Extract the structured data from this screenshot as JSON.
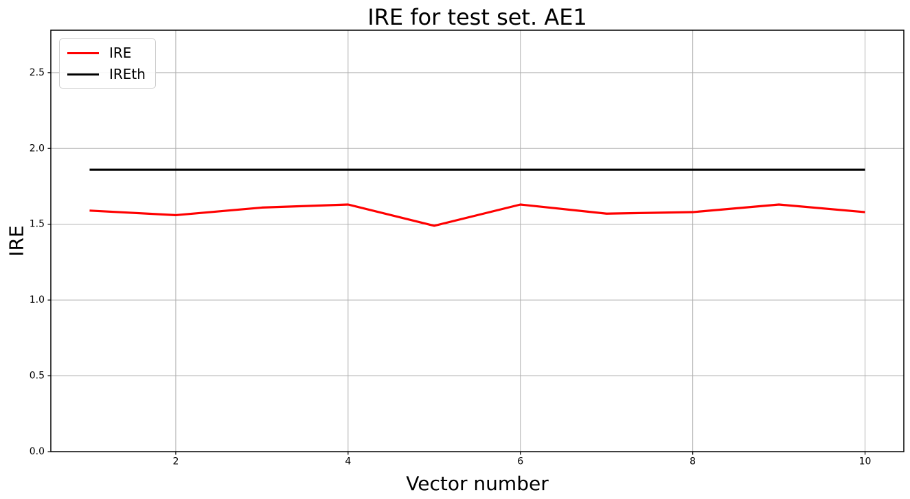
{
  "chart_data": {
    "type": "line",
    "title": "IRE for test set. AE1",
    "xlabel": "Vector number",
    "ylabel": "IRE",
    "x": [
      1,
      2,
      3,
      4,
      5,
      6,
      7,
      8,
      9,
      10
    ],
    "series": [
      {
        "name": "IRE",
        "color": "#ff0000",
        "values": [
          1.59,
          1.56,
          1.61,
          1.63,
          1.49,
          1.63,
          1.57,
          1.58,
          1.63,
          1.58
        ]
      },
      {
        "name": "IREth",
        "color": "#000000",
        "values": [
          1.86,
          1.86,
          1.86,
          1.86,
          1.86,
          1.86,
          1.86,
          1.86,
          1.86,
          1.86
        ]
      }
    ],
    "xlim": [
      0.55,
      10.45
    ],
    "ylim": [
      0,
      2.78
    ],
    "xticks": {
      "values": [
        2,
        4,
        6,
        8,
        10
      ],
      "labels": [
        "2",
        "4",
        "6",
        "8",
        "10"
      ]
    },
    "yticks": {
      "values": [
        0,
        0.5,
        1,
        1.5,
        2,
        2.5
      ],
      "labels": [
        "0.0",
        "0.5",
        "1.0",
        "1.5",
        "2.0",
        "2.5"
      ]
    },
    "grid": true,
    "grid_color": "#b0b0b0",
    "axes_color": "#000000",
    "background_color": "#ffffff",
    "legend_position": "upper-left"
  }
}
